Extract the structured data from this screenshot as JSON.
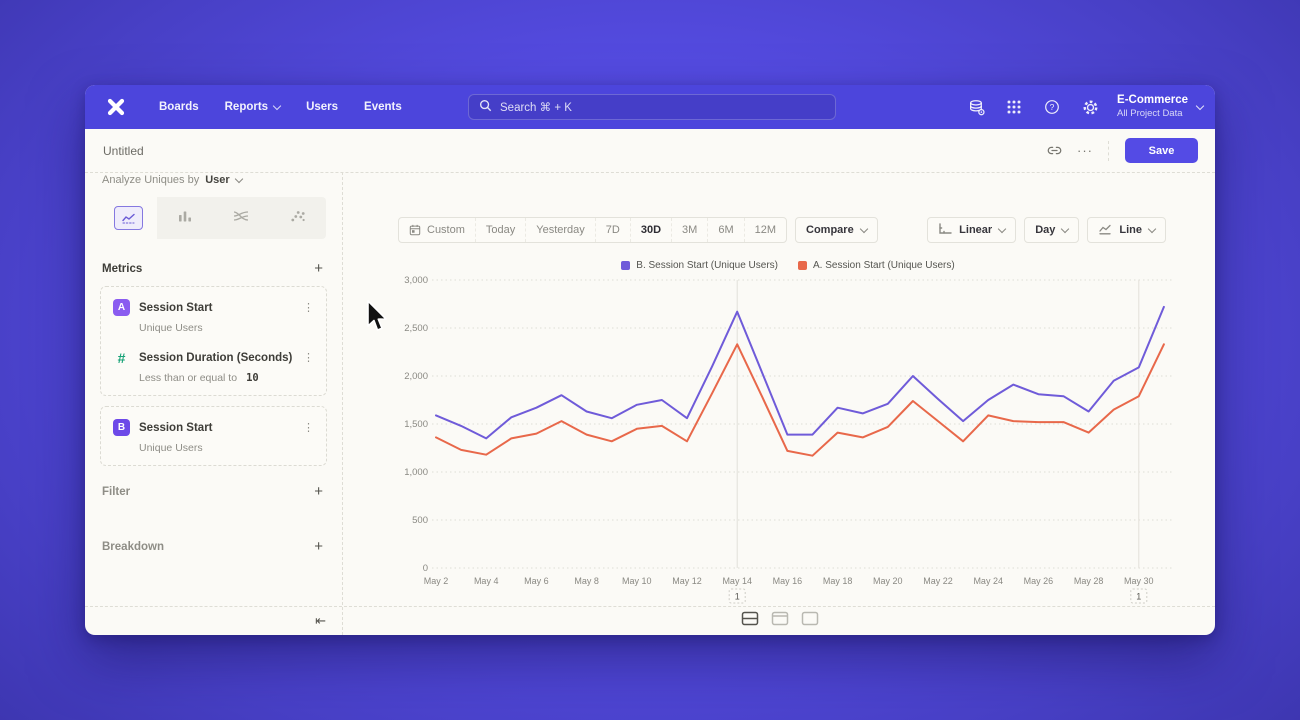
{
  "nav": {
    "menu": [
      {
        "label": "Boards",
        "chevron": false
      },
      {
        "label": "Reports",
        "chevron": true
      },
      {
        "label": "Users",
        "chevron": false
      },
      {
        "label": "Events",
        "chevron": false
      }
    ],
    "search_placeholder": "Search  ⌘ + K",
    "project_name": "E-Commerce",
    "project_subtitle": "All Project Data"
  },
  "header": {
    "title": "Untitled",
    "save_label": "Save"
  },
  "glyphs": {
    "plus": "+",
    "kebab": "⋮",
    "more": "···",
    "collapse": "⇤"
  },
  "sidebar": {
    "analyze_prefix": "Analyze Uniques by",
    "analyze_value": "User",
    "metrics_title": "Metrics",
    "metrics": [
      {
        "badge": "A",
        "badge_color": "#8A5CF0",
        "name": "Session Start",
        "subtitle": "Unique Users"
      },
      {
        "badge": "#",
        "badge_color": "",
        "name": "Session Duration (Seconds)",
        "subtitle_prefix": "Less than or equal to",
        "subtitle_value": "10"
      },
      {
        "badge": "B",
        "badge_color": "#6D49E8",
        "name": "Session Start",
        "subtitle": "Unique Users"
      }
    ],
    "filter_title": "Filter",
    "breakdown_title": "Breakdown"
  },
  "toolbar": {
    "ranges": [
      "Custom",
      "Today",
      "Yesterday",
      "7D",
      "30D",
      "3M",
      "6M",
      "12M"
    ],
    "selected_range": "30D",
    "compare_label": "Compare",
    "scale_label": "Linear",
    "interval_label": "Day",
    "chart_type_label": "Line"
  },
  "chart_data": {
    "type": "line",
    "x": [
      "May 2",
      "May 3",
      "May 4",
      "May 5",
      "May 6",
      "May 7",
      "May 8",
      "May 9",
      "May 10",
      "May 11",
      "May 12",
      "May 13",
      "May 14",
      "May 15",
      "May 16",
      "May 17",
      "May 18",
      "May 19",
      "May 20",
      "May 21",
      "May 22",
      "May 23",
      "May 24",
      "May 25",
      "May 26",
      "May 27",
      "May 28",
      "May 29",
      "May 30",
      "May 31"
    ],
    "x_tick_every": 2,
    "series": [
      {
        "name": "B. Session Start (Unique Users)",
        "color": "#6F5BD9",
        "values": [
          1590,
          1480,
          1350,
          1570,
          1670,
          1800,
          1630,
          1560,
          1700,
          1750,
          1560,
          2100,
          2670,
          2030,
          1390,
          1390,
          1670,
          1610,
          1710,
          2000,
          1760,
          1530,
          1750,
          1910,
          1810,
          1790,
          1630,
          1950,
          2090,
          2720
        ]
      },
      {
        "name": "A. Session Start (Unique Users)",
        "color": "#E8684A",
        "values": [
          1360,
          1230,
          1180,
          1350,
          1400,
          1530,
          1390,
          1320,
          1450,
          1480,
          1320,
          1820,
          2330,
          1780,
          1220,
          1170,
          1410,
          1360,
          1470,
          1740,
          1530,
          1320,
          1590,
          1530,
          1520,
          1520,
          1410,
          1650,
          1790,
          2330
        ]
      }
    ],
    "ylim": [
      0,
      3000
    ],
    "yticks": [
      {
        "v": 0,
        "label": "0"
      },
      {
        "v": 500,
        "label": "500"
      },
      {
        "v": 1000,
        "label": "1,000"
      },
      {
        "v": 1500,
        "label": "1,500"
      },
      {
        "v": 2000,
        "label": "2,000"
      },
      {
        "v": 2500,
        "label": "2,500"
      },
      {
        "v": 3000,
        "label": "3,000"
      }
    ],
    "annotations": [
      {
        "day_index": 12,
        "x": "May 14",
        "label": "1"
      },
      {
        "day_index": 28,
        "x": "May 30",
        "label": "1"
      }
    ],
    "grid": true,
    "legend_position": "top-center"
  },
  "colors": {
    "navbar": "#4C45DC",
    "accent": "#544BE5",
    "series_b": "#6F5BD9",
    "series_a": "#E8684A",
    "hash_metric": "#17A277"
  }
}
